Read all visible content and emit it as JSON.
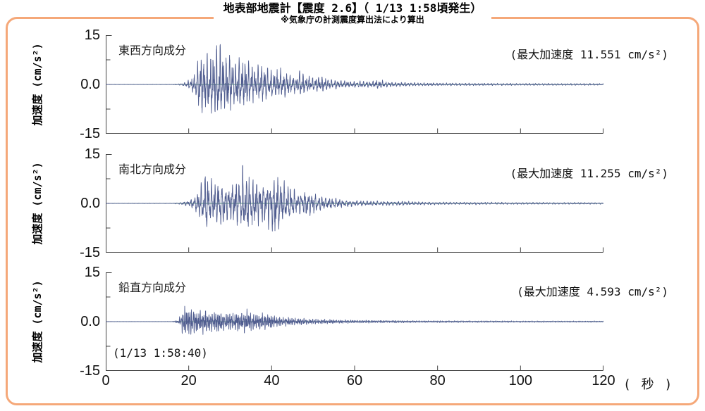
{
  "header": {
    "title": "地表部地震計【震度 2.6】（ 1/13 1:58頃発生）",
    "subtitle": "※気象庁の計測震度算出法により算出"
  },
  "colors": {
    "frame_border": "#f5a879",
    "trace": "#4f5c8f",
    "zero_line": "#5f9e7f",
    "axis": "#444444"
  },
  "axis": {
    "x_ticks": [
      0,
      20,
      40,
      60,
      80,
      100,
      120
    ],
    "x_unit_label": "( 秒 )",
    "y_tick_labels": [
      "15",
      "0.0",
      "-15"
    ],
    "start_time_label": "(1/13 1:58:40)"
  },
  "chart_data": [
    {
      "type": "line",
      "component_label": "東西方向成分",
      "max_label": "(最大加速度 11.551 cm/s²)",
      "max_acceleration_cm_s2": 11.551,
      "ylabel": "加速度 (cm/s²)",
      "ylim": [
        -15,
        15
      ],
      "xlim": [
        0,
        120
      ],
      "x_ticks": [
        0,
        20,
        40,
        60,
        80,
        100,
        120
      ],
      "y_minor_ticks": [
        7.5,
        -7.5
      ],
      "waveform_envelope_t_amp": [
        [
          0,
          0.06
        ],
        [
          16,
          0.07
        ],
        [
          18,
          0.25
        ],
        [
          19.5,
          0.8
        ],
        [
          21,
          2.5
        ],
        [
          22,
          6
        ],
        [
          22.8,
          11.5
        ],
        [
          23.5,
          8
        ],
        [
          24.5,
          10.5
        ],
        [
          25.5,
          9
        ],
        [
          26.5,
          11.2
        ],
        [
          27.5,
          12.5
        ],
        [
          28.5,
          8.5
        ],
        [
          29.5,
          9.5
        ],
        [
          31,
          6.5
        ],
        [
          32.5,
          8
        ],
        [
          34,
          7
        ],
        [
          35.5,
          5.5
        ],
        [
          37,
          6.5
        ],
        [
          38.5,
          5
        ],
        [
          40,
          4.2
        ],
        [
          42,
          4.8
        ],
        [
          44,
          3.4
        ],
        [
          46,
          2.6
        ],
        [
          47,
          4.2
        ],
        [
          48.5,
          2.6
        ],
        [
          50,
          2.2
        ],
        [
          52,
          2.6
        ],
        [
          54,
          1.7
        ],
        [
          56,
          1.3
        ],
        [
          58,
          1.1
        ],
        [
          60,
          0.9
        ],
        [
          62,
          1.1
        ],
        [
          64,
          0.8
        ],
        [
          66,
          1.6
        ],
        [
          67.5,
          0.9
        ],
        [
          70,
          0.7
        ],
        [
          73,
          0.55
        ],
        [
          76,
          0.5
        ],
        [
          80,
          0.45
        ],
        [
          85,
          0.4
        ],
        [
          90,
          0.38
        ],
        [
          95,
          0.35
        ],
        [
          100,
          0.33
        ],
        [
          105,
          0.32
        ],
        [
          110,
          0.3
        ],
        [
          115,
          0.3
        ],
        [
          120,
          0.28
        ]
      ],
      "synth": {
        "freqs_hz": [
          1.3,
          2.2,
          3.5
        ],
        "seed": 11
      }
    },
    {
      "type": "line",
      "component_label": "南北方向成分",
      "max_label": "(最大加速度 11.255 cm/s²)",
      "max_acceleration_cm_s2": 11.255,
      "ylabel": "加速度 (cm/s²)",
      "ylim": [
        -15,
        15
      ],
      "xlim": [
        0,
        120
      ],
      "x_ticks": [
        0,
        20,
        40,
        60,
        80,
        100,
        120
      ],
      "y_minor_ticks": [
        7.5,
        -7.5
      ],
      "waveform_envelope_t_amp": [
        [
          0,
          0.06
        ],
        [
          16,
          0.07
        ],
        [
          18,
          0.3
        ],
        [
          20,
          0.9
        ],
        [
          21.5,
          2.2
        ],
        [
          23,
          6
        ],
        [
          24,
          11.2
        ],
        [
          25,
          8
        ],
        [
          26,
          6.5
        ],
        [
          27.5,
          7.5
        ],
        [
          29,
          5.5
        ],
        [
          30.5,
          6
        ],
        [
          32,
          7
        ],
        [
          33,
          10.5
        ],
        [
          34,
          9
        ],
        [
          35,
          8
        ],
        [
          36.5,
          7
        ],
        [
          38,
          6
        ],
        [
          39.5,
          7.5
        ],
        [
          41,
          9.5
        ],
        [
          42,
          7
        ],
        [
          43.5,
          6
        ],
        [
          45,
          4.5
        ],
        [
          46.5,
          3.2
        ],
        [
          48,
          4
        ],
        [
          50,
          3
        ],
        [
          52,
          2.2
        ],
        [
          54,
          1.7
        ],
        [
          56,
          1.4
        ],
        [
          58,
          1.1
        ],
        [
          60,
          0.9
        ],
        [
          63,
          0.8
        ],
        [
          66,
          0.7
        ],
        [
          69,
          0.6
        ],
        [
          72,
          0.65
        ],
        [
          75,
          0.5
        ],
        [
          80,
          0.45
        ],
        [
          85,
          0.4
        ],
        [
          90,
          0.36
        ],
        [
          95,
          0.33
        ],
        [
          100,
          0.3
        ],
        [
          105,
          0.3
        ],
        [
          110,
          0.28
        ],
        [
          115,
          0.27
        ],
        [
          120,
          0.26
        ]
      ],
      "synth": {
        "freqs_hz": [
          1.2,
          2.0,
          3.3
        ],
        "seed": 22
      }
    },
    {
      "type": "line",
      "component_label": "鉛直方向成分",
      "max_label": "(最大加速度 4.593 cm/s²)",
      "max_acceleration_cm_s2": 4.593,
      "ylabel": "加速度 (cm/s²)",
      "ylim": [
        -15,
        15
      ],
      "xlim": [
        0,
        120
      ],
      "x_ticks": [
        0,
        20,
        40,
        60,
        80,
        100,
        120
      ],
      "y_minor_ticks": [
        7.5,
        -7.5
      ],
      "waveform_envelope_t_amp": [
        [
          0,
          0.05
        ],
        [
          16,
          0.06
        ],
        [
          17.5,
          0.5
        ],
        [
          18,
          2.2
        ],
        [
          18.8,
          4.3
        ],
        [
          20,
          4.5
        ],
        [
          21,
          3.6
        ],
        [
          22,
          4.2
        ],
        [
          23,
          3.2
        ],
        [
          24,
          4.4
        ],
        [
          25,
          3.4
        ],
        [
          26,
          2.8
        ],
        [
          27,
          3.6
        ],
        [
          28,
          3.0
        ],
        [
          29,
          2.6
        ],
        [
          30,
          2.9
        ],
        [
          31,
          2.4
        ],
        [
          32,
          3.1
        ],
        [
          33,
          2.6
        ],
        [
          34,
          3.8
        ],
        [
          35,
          2.8
        ],
        [
          36,
          2.1
        ],
        [
          37,
          2.4
        ],
        [
          38,
          2.6
        ],
        [
          39,
          2.0
        ],
        [
          40,
          2.2
        ],
        [
          41,
          1.7
        ],
        [
          42,
          1.5
        ],
        [
          43.5,
          1.3
        ],
        [
          45,
          1.1
        ],
        [
          47,
          1.0
        ],
        [
          49,
          0.85
        ],
        [
          51,
          0.75
        ],
        [
          53,
          0.65
        ],
        [
          55,
          0.6
        ],
        [
          58,
          0.5
        ],
        [
          61,
          0.45
        ],
        [
          64,
          0.42
        ],
        [
          68,
          0.38
        ],
        [
          72,
          0.34
        ],
        [
          76,
          0.3
        ],
        [
          80,
          0.3
        ],
        [
          85,
          0.27
        ],
        [
          90,
          0.25
        ],
        [
          95,
          0.24
        ],
        [
          100,
          0.22
        ],
        [
          105,
          0.22
        ],
        [
          110,
          0.2
        ],
        [
          115,
          0.2
        ],
        [
          120,
          0.2
        ]
      ],
      "synth": {
        "freqs_hz": [
          2.4,
          3.8,
          5.6
        ],
        "seed": 33
      }
    }
  ]
}
